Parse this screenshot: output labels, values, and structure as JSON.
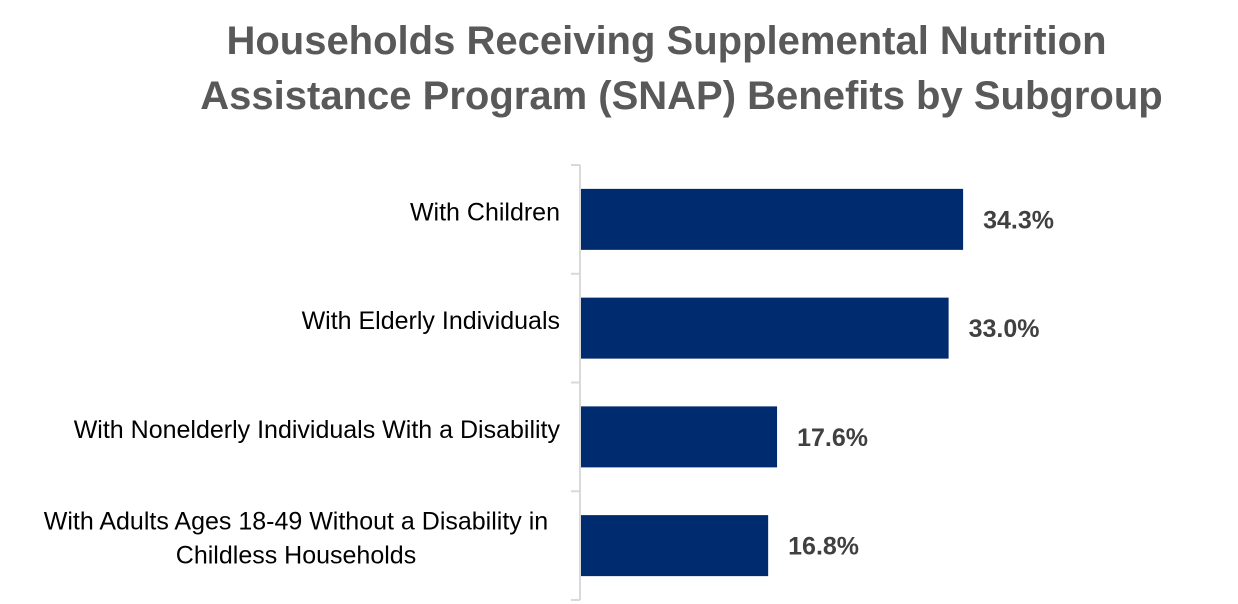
{
  "chart_data": {
    "type": "bar",
    "orientation": "horizontal",
    "title": "Households Receiving Supplemental Nutrition Assistance Program (SNAP) Benefits by Subgroup",
    "title_lines": [
      "Households Receiving Supplemental Nutrition",
      "Assistance Program (SNAP) Benefits by Subgroup"
    ],
    "categories": [
      "With Children",
      "With Elderly Individuals",
      "With Nonelderly Individuals With a Disability",
      "With Adults Ages 18-49 Without a Disability in Childless Households"
    ],
    "category_lines": [
      [
        "With Children"
      ],
      [
        "With Elderly Individuals"
      ],
      [
        "With Nonelderly Individuals With a Disability"
      ],
      [
        "With Adults Ages 18-49 Without a Disability in",
        "Childless Households"
      ]
    ],
    "values": [
      34.3,
      33.0,
      17.6,
      16.8
    ],
    "value_labels": [
      "34.3%",
      "33.0%",
      "17.6%",
      "16.8%"
    ],
    "unit": "%",
    "xlim": [
      0,
      53
    ],
    "xlabel": "",
    "ylabel": "",
    "grid": false,
    "legend": "none",
    "bar_color": "#002b6e",
    "title_color": "#595959",
    "value_label_color": "#404040",
    "axis_color": "#d9d9d9"
  }
}
